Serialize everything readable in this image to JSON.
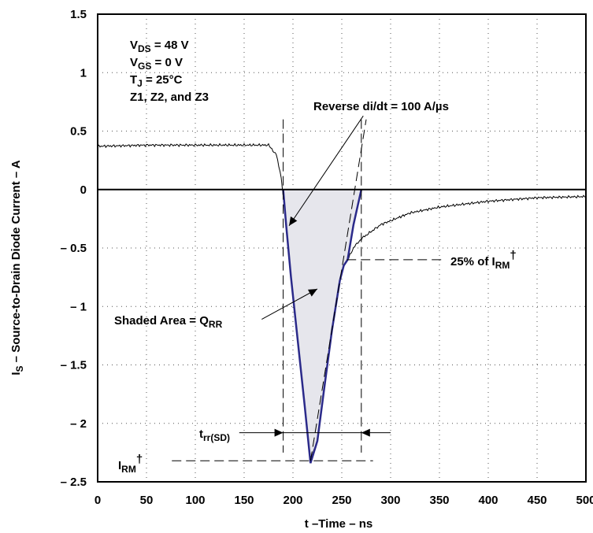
{
  "chart_data": {
    "type": "line",
    "xlabel": "t –Time – ns",
    "ylabel_main": "I",
    "ylabel_sub": "S",
    "ylabel_rest": " – Source-to-Drain Diode Current – A",
    "xlim": [
      0,
      500
    ],
    "ylim": [
      -2.5,
      1.5
    ],
    "x_ticks": [
      "0",
      "50",
      "100",
      "150",
      "200",
      "250",
      "300",
      "350",
      "400",
      "450",
      "500"
    ],
    "y_ticks": [
      "1.5",
      "1",
      "0.5",
      "0",
      "– 0.5",
      "– 1",
      "– 1.5",
      "– 2",
      "– 2.5"
    ],
    "grid": "dotted",
    "conditions": [
      {
        "main": "V",
        "sub": "DS",
        "rest": " = 48 V"
      },
      {
        "main": "V",
        "sub": "GS",
        "rest": " = 0 V"
      },
      {
        "main": "T",
        "sub": "J",
        "rest": " = 25°C"
      },
      {
        "main": "Z1, Z2, and Z3",
        "sub": "",
        "rest": ""
      }
    ],
    "annotations": {
      "di_dt": "Reverse di/dt = 100 A/µs",
      "pct_main": "25% of I",
      "pct_sub": "RM",
      "pct_sup": "†",
      "qrr_main": "Shaded Area = Q",
      "qrr_sub": "RR",
      "trr_main": "t",
      "trr_sub": "rr(SD)",
      "irm_main": "I",
      "irm_sub": "RM",
      "irm_sup": "†"
    },
    "series": [
      {
        "style": "scope-trace",
        "x": [
          0,
          50,
          100,
          150,
          175,
          183,
          188,
          193,
          198,
          205,
          212,
          218,
          225,
          232,
          240,
          248,
          252,
          256,
          262,
          270,
          290,
          320,
          350,
          400,
          450,
          500
        ],
        "y": [
          0.37,
          0.38,
          0.38,
          0.38,
          0.38,
          0.3,
          0.1,
          -0.3,
          -0.75,
          -1.3,
          -1.85,
          -2.3,
          -2.15,
          -1.7,
          -1.2,
          -0.78,
          -0.65,
          -0.6,
          -0.5,
          -0.42,
          -0.3,
          -0.2,
          -0.15,
          -0.1,
          -0.07,
          -0.06
        ]
      },
      {
        "style": "fit-curve",
        "x": [
          190,
          193,
          198,
          205,
          212,
          218,
          225,
          232,
          240,
          248,
          252,
          256,
          262,
          270
        ],
        "y": [
          0,
          -0.3,
          -0.75,
          -1.3,
          -1.85,
          -2.34,
          -2.15,
          -1.7,
          -1.2,
          -0.78,
          -0.65,
          -0.6,
          -0.3,
          0
        ]
      }
    ],
    "reference_lines": {
      "t_start": 190,
      "t_end": 270,
      "irm": -2.32,
      "pct_level": -0.6
    },
    "colors": {
      "fit_curve": "#2b2a8a",
      "shade": "#e6e6ec",
      "trace": "#000000"
    }
  }
}
